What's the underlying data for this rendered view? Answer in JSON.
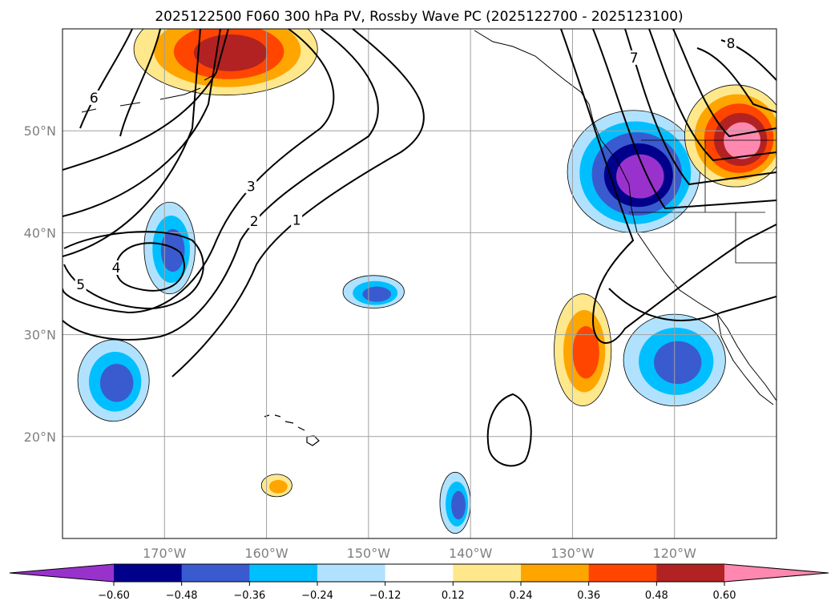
{
  "chart_data": {
    "type": "contour_map",
    "title": "2025122500 F060 300 hPa PV, Rossby Wave PC (2025122700 - 2025123100)",
    "map": {
      "lon_range": [
        -180,
        -110
      ],
      "lat_range": [
        10,
        60
      ],
      "projection": "equirectangular",
      "grid": true,
      "x_ticks": [
        {
          "value": -170,
          "label": "170°W"
        },
        {
          "value": -160,
          "label": "160°W"
        },
        {
          "value": -150,
          "label": "150°W"
        },
        {
          "value": -140,
          "label": "140°W"
        },
        {
          "value": -130,
          "label": "130°W"
        },
        {
          "value": -120,
          "label": "120°W"
        }
      ],
      "y_ticks": [
        {
          "value": 20,
          "label": "20°N"
        },
        {
          "value": 30,
          "label": "30°N"
        },
        {
          "value": 40,
          "label": "40°N"
        },
        {
          "value": 50,
          "label": "50°N"
        }
      ]
    },
    "filled_field": {
      "name": "Rossby Wave PC",
      "levels": [
        -0.6,
        -0.48,
        -0.36,
        -0.24,
        -0.12,
        0.12,
        0.24,
        0.36,
        0.48,
        0.6
      ],
      "colors": [
        "#9932cc",
        "#00008b",
        "#3a5bcf",
        "#00bfff",
        "#b0e2ff",
        "#ffffff",
        "#ffe88c",
        "#ffa500",
        "#ff4500",
        "#b22222",
        "#ff88b0"
      ],
      "features": [
        {
          "name": "Pacific NW negative",
          "lon": -124,
          "lat": 46,
          "rx": 6.5,
          "ry": 6,
          "bands": 6
        },
        {
          "name": "Gulf of Alaska positive",
          "lon": -164,
          "lat": 58,
          "rx": 9,
          "ry": 4.5,
          "bands": 4
        },
        {
          "name": "BC-Alberta positive",
          "lon": -114,
          "lat": 49.5,
          "rx": 5,
          "ry": 5,
          "bands": 6
        },
        {
          "name": "Offshore California positive",
          "lon": -129,
          "lat": 28.5,
          "rx": 2.8,
          "ry": 5.5,
          "bands": 3
        },
        {
          "name": "Baja negative",
          "lon": -120,
          "lat": 27.5,
          "rx": 5,
          "ry": 4.5,
          "bands": 3
        },
        {
          "name": "Central Pacific negative",
          "lon": -149.5,
          "lat": 34.2,
          "rx": 3,
          "ry": 1.6,
          "bands": 3
        },
        {
          "name": "Dateline negative",
          "lon": -169.5,
          "lat": 38.5,
          "rx": 2.5,
          "ry": 4.5,
          "bands": 3
        },
        {
          "name": "Southwest negative",
          "lon": -175,
          "lat": 25.5,
          "rx": 3.5,
          "ry": 4,
          "bands": 3
        },
        {
          "name": "Tropical negative",
          "lon": -141.5,
          "lat": 13.5,
          "rx": 1.5,
          "ry": 3,
          "bands": 3
        },
        {
          "name": "South of Hawaii positive",
          "lon": -159,
          "lat": 15.2,
          "rx": 1.5,
          "ry": 1.1,
          "bands": 2
        }
      ]
    },
    "contours": {
      "name": "300 hPa PV",
      "labels": [
        "1",
        "2",
        "3",
        "4",
        "5",
        "6",
        "7",
        "8"
      ]
    },
    "colorbar": {
      "orientation": "horizontal",
      "extend": "both",
      "tick_labels": [
        "−0.60",
        "−0.48",
        "−0.36",
        "−0.24",
        "−0.12",
        "0.12",
        "0.24",
        "0.36",
        "0.48",
        "0.60"
      ]
    }
  }
}
